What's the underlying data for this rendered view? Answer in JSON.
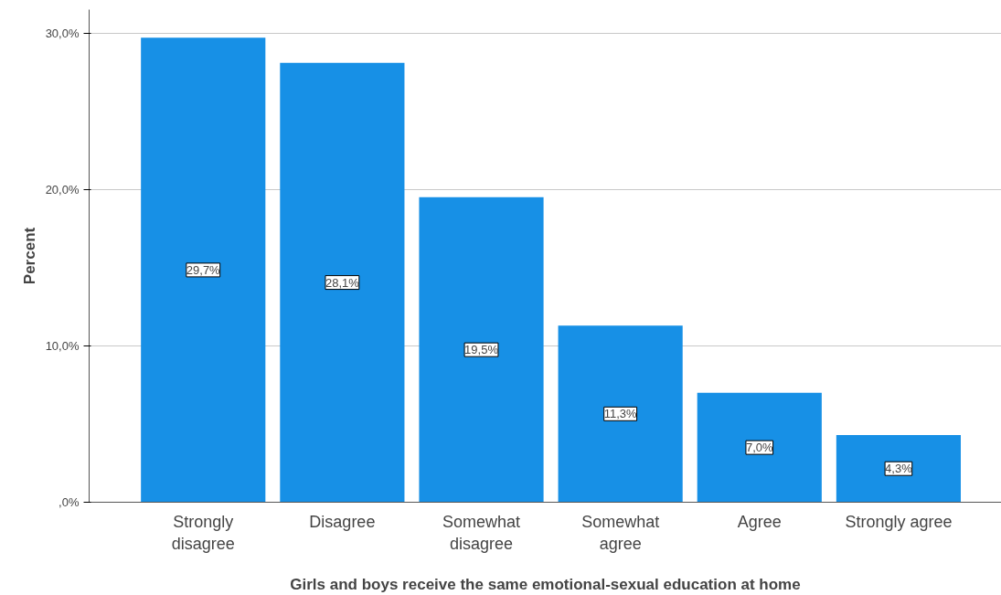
{
  "chart_data": {
    "type": "bar",
    "xlabel": "Girls and boys receive the same emotional-sexual education at home",
    "ylabel": "Percent",
    "categories": [
      "Strongly\ndisagree",
      "Disagree",
      "Somewhat\ndisagree",
      "Somewhat\nagree",
      "Agree",
      "Strongly agree"
    ],
    "values": [
      29.7,
      28.1,
      19.5,
      11.3,
      7.0,
      4.3
    ],
    "value_labels": [
      "29,7%",
      "28,1%",
      "19,5%",
      "11,3%",
      "7,0%",
      "4,3%"
    ],
    "color": "#1790e6",
    "ylim": [
      0,
      31.5
    ],
    "yticks": [
      {
        "value": 0,
        "label": ",0%"
      },
      {
        "value": 10,
        "label": "10,0%"
      },
      {
        "value": 20,
        "label": "20,0%"
      },
      {
        "value": 30,
        "label": "30,0%"
      }
    ],
    "grid": "y"
  }
}
